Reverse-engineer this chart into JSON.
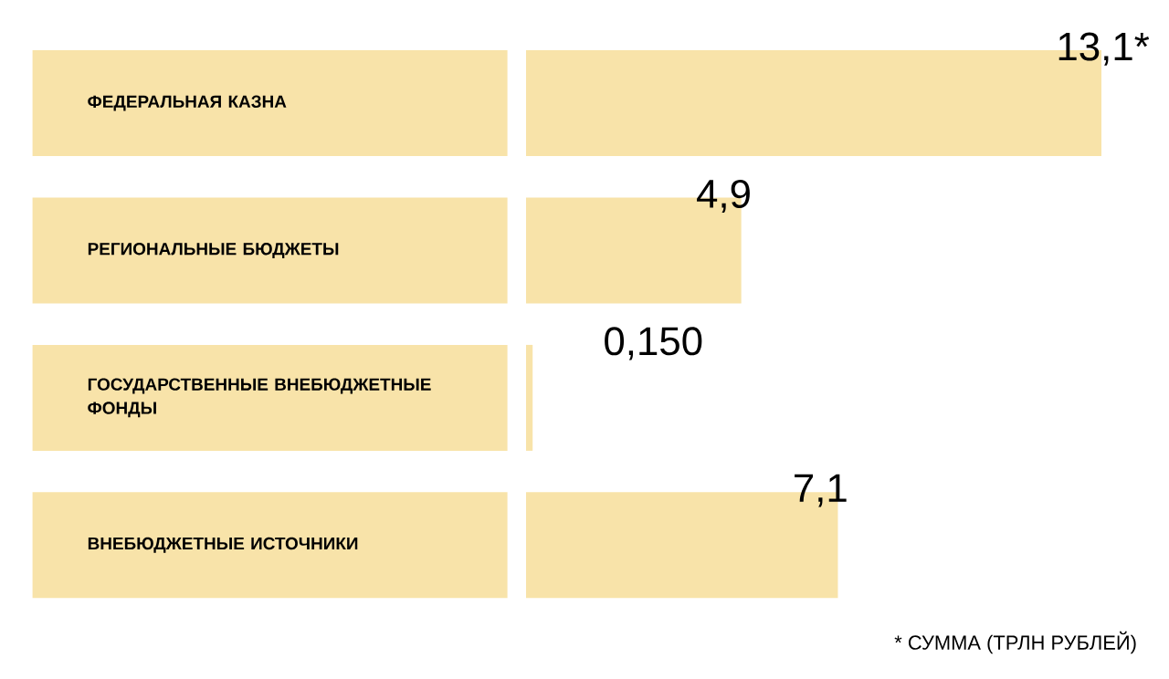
{
  "chart_data": {
    "type": "bar",
    "orientation": "horizontal",
    "categories": [
      "ФЕДЕРАЛЬНАЯ КАЗНА",
      "РЕГИОНАЛЬНЫЕ БЮДЖЕТЫ",
      "ГОСУДАРСТВЕННЫЕ ВНЕБЮДЖЕТНЫЕ ФОНДЫ",
      "ВНЕБЮДЖЕТНЫЕ ИСТОЧНИКИ"
    ],
    "values": [
      13.1,
      4.9,
      0.15,
      7.1
    ],
    "value_labels": [
      "13,1*",
      "4,9",
      "0,150",
      "7,1"
    ],
    "color": "#f8e3a9",
    "annotations": [
      "* СУММА (ТРЛН РУБЛЕЙ)"
    ],
    "grid": false
  }
}
